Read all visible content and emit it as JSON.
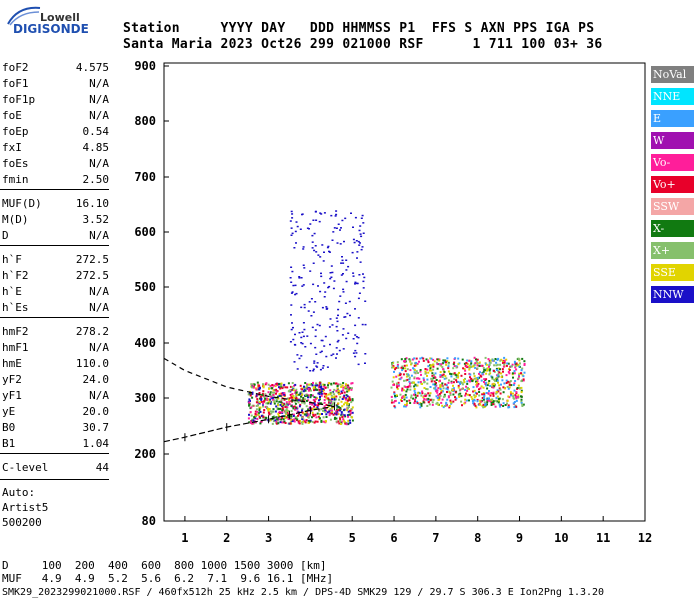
{
  "logo": {
    "line1": "Lowell",
    "line2": "DIGISONDE"
  },
  "header": {
    "row1": "Station     YYYY DAY   DDD HHMMSS P1  FFS S AXN PPS IGA PS",
    "row2": "Santa Maria 2023 Oct26 299 021000 RSF      1 711 100 03+ 36"
  },
  "params": [
    {
      "label": "foF2",
      "value": "4.575"
    },
    {
      "label": "foF1",
      "value": "N/A"
    },
    {
      "label": "foF1p",
      "value": "N/A"
    },
    {
      "label": "foE",
      "value": "N/A"
    },
    {
      "label": "foEp",
      "value": "0.54"
    },
    {
      "label": "fxI",
      "value": "4.85"
    },
    {
      "label": "foEs",
      "value": "N/A"
    },
    {
      "label": "fmin",
      "value": "2.50"
    },
    {
      "label": "MUF(D)",
      "value": "16.10"
    },
    {
      "label": "M(D)",
      "value": "3.52"
    },
    {
      "label": "D",
      "value": "N/A"
    },
    {
      "label": "h`F",
      "value": "272.5"
    },
    {
      "label": "h`F2",
      "value": "272.5"
    },
    {
      "label": "h`E",
      "value": "N/A"
    },
    {
      "label": "h`Es",
      "value": "N/A"
    },
    {
      "label": "hmF2",
      "value": "278.2"
    },
    {
      "label": "hmF1",
      "value": "N/A"
    },
    {
      "label": "hmE",
      "value": "110.0"
    },
    {
      "label": "yF2",
      "value": "24.0"
    },
    {
      "label": "yF1",
      "value": "N/A"
    },
    {
      "label": "yE",
      "value": "20.0"
    },
    {
      "label": "B0",
      "value": "30.7"
    },
    {
      "label": "B1",
      "value": "1.04"
    },
    {
      "label": "C-level",
      "value": "44"
    }
  ],
  "auto": {
    "line1": "Auto:",
    "line2": "Artist5",
    "line3": "500200"
  },
  "legend": [
    {
      "label": "NoVal",
      "color": "#7f7f7f"
    },
    {
      "label": "NNE",
      "color": "#00e5ff"
    },
    {
      "label": "E",
      "color": "#3aa0ff"
    },
    {
      "label": "W",
      "color": "#a010b0"
    },
    {
      "label": "Vo-",
      "color": "#ff1e9a"
    },
    {
      "label": "Vo+",
      "color": "#e8002a"
    },
    {
      "label": "SSW",
      "color": "#f4a6a6"
    },
    {
      "label": "X-",
      "color": "#117a11"
    },
    {
      "label": "X+",
      "color": "#86c06c"
    },
    {
      "label": "SSE",
      "color": "#e1d400"
    },
    {
      "label": "NNW",
      "color": "#1a10c8"
    }
  ],
  "bottom": {
    "d_row": "D     100  200  400  600  800 1000 1500 3000 [km]",
    "muf_row": "MUF   4.9  4.9  5.2  5.6  6.2  7.1  9.6 16.1 [MHz]",
    "footer": "SMK29_2023299021000.RSF / 460fx512h 25 kHz 2.5 km / DPS-4D SMK29 129 / 29.7 S 306.3 E Ion2Png 1.3.20"
  },
  "chart_data": {
    "type": "scatter",
    "xlabel": "",
    "ylabel": "",
    "xlim": [
      0.5,
      12
    ],
    "ylim": [
      80,
      900
    ],
    "x_ticks": [
      1,
      2,
      3,
      4,
      5,
      6,
      7,
      8,
      9,
      10,
      11,
      12
    ],
    "y_ticks": [
      80,
      200,
      300,
      400,
      500,
      600,
      700,
      800,
      900
    ],
    "y_tick_labels": [
      "80",
      "200",
      "300",
      "400",
      "500",
      "600",
      "700",
      "800",
      "900"
    ],
    "echo_clusters": [
      {
        "name": "F2 o-trace",
        "x": [
          2.5,
          5.0
        ],
        "y": [
          255,
          330
        ],
        "colors": [
          "#e8002a",
          "#ff1e9a",
          "#86c06c",
          "#e1d400",
          "#1a10c8",
          "#117a11"
        ]
      },
      {
        "name": "F2 x-trace",
        "x": [
          5.9,
          9.1
        ],
        "y": [
          285,
          375
        ],
        "colors": [
          "#e8002a",
          "#ff1e9a",
          "#86c06c",
          "#e1d400",
          "#117a11",
          "#3aa0ff"
        ]
      },
      {
        "name": "spread F",
        "x": [
          3.5,
          5.3
        ],
        "y": [
          350,
          640
        ],
        "colors": [
          "#1a10c8"
        ]
      }
    ],
    "profile_line": {
      "x": [
        0.5,
        1.0,
        2.0,
        3.0,
        3.5,
        4.0,
        4.575
      ],
      "y": [
        222,
        230,
        248,
        262,
        270,
        278,
        285
      ]
    },
    "dashed_curve": {
      "x": [
        0.5,
        1.0,
        2.0,
        3.0,
        4.0,
        4.575
      ],
      "y": [
        372,
        350,
        320,
        303,
        292,
        285
      ]
    }
  }
}
